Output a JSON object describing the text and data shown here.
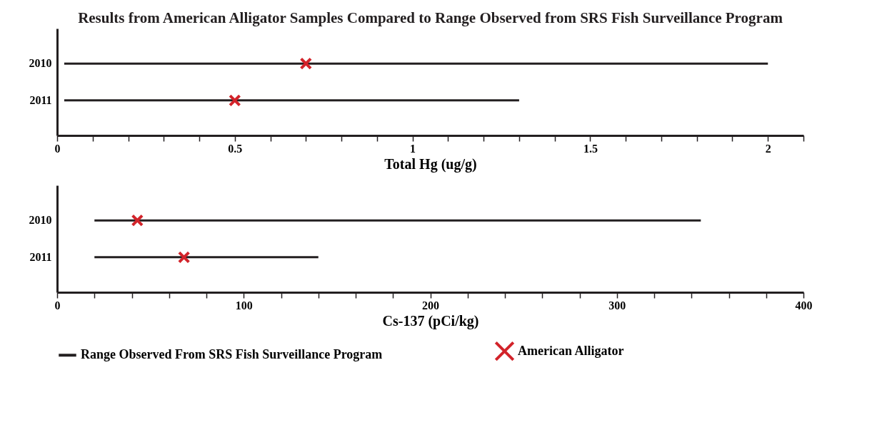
{
  "chart_data": [
    {
      "type": "bar",
      "title": "Results from American Alligator Samples Compared to Range Observed from SRS Fish Surveillance Program",
      "orientation": "horizontal",
      "xlabel": "Total Hg (ug/g)",
      "categories": [
        "2010",
        "2011"
      ],
      "xlim": [
        0,
        2.1
      ],
      "xticks": [
        0,
        {
          "value": 0.1,
          "label": null
        },
        {
          "value": 0.2,
          "label": null
        },
        {
          "value": 0.3,
          "label": null
        },
        {
          "value": 0.4,
          "label": null
        },
        0.5,
        {
          "value": 0.6,
          "label": null
        },
        {
          "value": 0.7,
          "label": null
        },
        {
          "value": 0.8,
          "label": null
        },
        {
          "value": 0.9,
          "label": null
        },
        1,
        {
          "value": 1.1,
          "label": null
        },
        {
          "value": 1.2,
          "label": null
        },
        {
          "value": 1.3,
          "label": null
        },
        {
          "value": 1.4,
          "label": null
        },
        1.5,
        {
          "value": 1.6,
          "label": null
        },
        {
          "value": 1.7,
          "label": null
        },
        {
          "value": 1.8,
          "label": null
        },
        {
          "value": 1.9,
          "label": null
        },
        2,
        {
          "value": 2.1,
          "label": null
        }
      ],
      "grid": false,
      "legend": false,
      "series": [
        {
          "type": "bar",
          "color": "#231f20",
          "base": [
            0.02,
            0.02
          ],
          "values": [
            1.98,
            1.28
          ]
        },
        {
          "type": "scatter",
          "color": "#d2232a",
          "marker": "cross",
          "values": [
            0.7,
            0.5
          ]
        }
      ]
    },
    {
      "type": "bar",
      "orientation": "horizontal",
      "xlabel": "Cs-137 (pCi/kg)",
      "categories": [
        "2010",
        "2011"
      ],
      "xlim": [
        0,
        400
      ],
      "xticks": [
        0,
        {
          "value": 20,
          "label": null
        },
        {
          "value": 40,
          "label": null
        },
        {
          "value": 60,
          "label": null
        },
        {
          "value": 80,
          "label": null
        },
        100,
        {
          "value": 120,
          "label": null
        },
        {
          "value": 140,
          "label": null
        },
        {
          "value": 160,
          "label": null
        },
        {
          "value": 180,
          "label": null
        },
        200,
        {
          "value": 220,
          "label": null
        },
        {
          "value": 240,
          "label": null
        },
        {
          "value": 260,
          "label": null
        },
        {
          "value": 280,
          "label": null
        },
        300,
        {
          "value": 320,
          "label": null
        },
        {
          "value": 340,
          "label": null
        },
        {
          "value": 360,
          "label": null
        },
        {
          "value": 380,
          "label": null
        },
        400
      ],
      "grid": false,
      "legend": "bottom",
      "series": [
        {
          "name": "Range Observed From SRS Fish Surveillance Program",
          "type": "bar",
          "color": "#231f20",
          "base": [
            20,
            20
          ],
          "values": [
            325,
            120
          ]
        },
        {
          "name": "American Alligator",
          "type": "scatter",
          "color": "#d2232a",
          "marker": "cross",
          "values": [
            43,
            68
          ]
        }
      ]
    }
  ]
}
